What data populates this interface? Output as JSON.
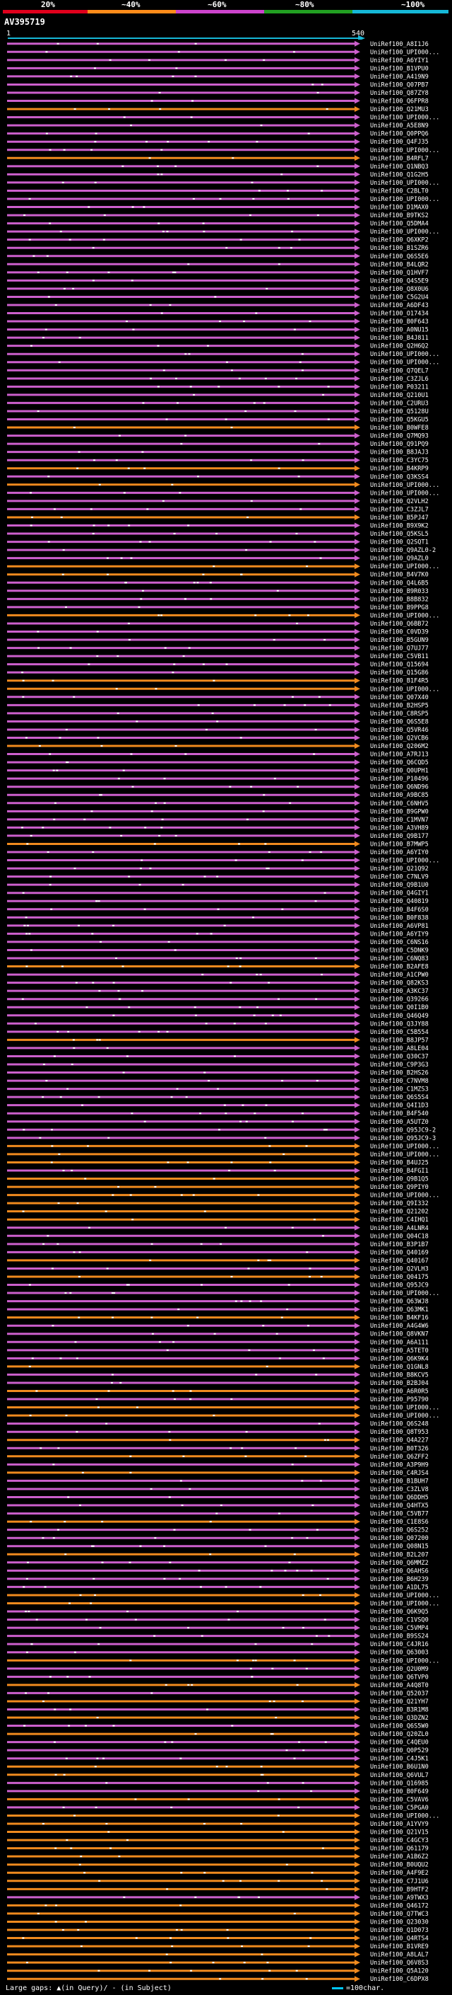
{
  "header": {
    "percent_labels": [
      "20%",
      "~40%",
      "~60%",
      "~80%",
      "~100%"
    ],
    "segment_colors": [
      "#e0001c",
      "#ff8c1a",
      "#cc44cc",
      "#22a022",
      "#16b8d8"
    ],
    "query_id": "AV395719",
    "ruler_start": "1",
    "ruler_end": "540"
  },
  "colors": {
    "background": "#000000",
    "purple_hit": "#cc5fcc",
    "orange_hit": "#f08a1e",
    "query_line": "#16b8d8",
    "gap_mark": "#ffffff"
  },
  "chart_data": {
    "type": "alignment-map",
    "x_axis": {
      "start": 1,
      "end": 540
    },
    "hits": [
      {
        "label": "UniRef100_A8I1J6",
        "color": "purple"
      },
      {
        "label": "UniRef100_UPI000...",
        "color": "purple"
      },
      {
        "label": "UniRef100_A6YIY1",
        "color": "purple"
      },
      {
        "label": "UniRef100_B1VPU0",
        "color": "purple"
      },
      {
        "label": "UniRef100_A419N9",
        "color": "purple"
      },
      {
        "label": "UniRef100_Q07PB7",
        "color": "purple"
      },
      {
        "label": "UniRef100_Q87ZY8",
        "color": "purple"
      },
      {
        "label": "UniRef100_Q6FPR8",
        "color": "purple"
      },
      {
        "label": "UniRef100_Q21MU3",
        "color": "orange"
      },
      {
        "label": "UniRef100_UPI000...",
        "color": "purple"
      },
      {
        "label": "UniRef100_A5E8N9",
        "color": "purple"
      },
      {
        "label": "UniRef100_Q0PPQ6",
        "color": "purple"
      },
      {
        "label": "UniRef100_Q4FJ35",
        "color": "purple"
      },
      {
        "label": "UniRef100_UPI000...",
        "color": "purple"
      },
      {
        "label": "UniRef100_B4RFL7",
        "color": "orange"
      },
      {
        "label": "UniRef100_Q1NBQ3",
        "color": "purple"
      },
      {
        "label": "UniRef100_Q1G2H5",
        "color": "purple"
      },
      {
        "label": "UniRef100_UPI000...",
        "color": "purple"
      },
      {
        "label": "UniRef100_C2BLT0",
        "color": "purple"
      },
      {
        "label": "UniRef100_UPI000...",
        "color": "purple"
      },
      {
        "label": "UniRef100_D1MAX0",
        "color": "purple"
      },
      {
        "label": "UniRef100_B9TKS2",
        "color": "purple"
      },
      {
        "label": "UniRef100_Q5DMA4",
        "color": "purple"
      },
      {
        "label": "UniRef100_UPI000...",
        "color": "purple"
      },
      {
        "label": "UniRef100_Q6XKP2",
        "color": "purple"
      },
      {
        "label": "UniRef100_B1SZR6",
        "color": "purple"
      },
      {
        "label": "UniRef100_Q6S5E6",
        "color": "purple"
      },
      {
        "label": "UniRef100_B4LQR2",
        "color": "purple"
      },
      {
        "label": "UniRef100_Q1HVF7",
        "color": "purple"
      },
      {
        "label": "UniRef100_Q4S5E9",
        "color": "purple"
      },
      {
        "label": "UniRef100_Q8X0U6",
        "color": "purple"
      },
      {
        "label": "UniRef100_C5G2U4",
        "color": "purple"
      },
      {
        "label": "UniRef100_A6DF43",
        "color": "purple"
      },
      {
        "label": "UniRef100_O17434",
        "color": "purple"
      },
      {
        "label": "UniRef100_B0F643",
        "color": "purple"
      },
      {
        "label": "UniRef100_A0NU15",
        "color": "purple"
      },
      {
        "label": "UniRef100_B4J811",
        "color": "purple"
      },
      {
        "label": "UniRef100_Q2H6Q2",
        "color": "purple"
      },
      {
        "label": "UniRef100_UPI000...",
        "color": "purple"
      },
      {
        "label": "UniRef100_UPI000...",
        "color": "purple"
      },
      {
        "label": "UniRef100_Q7QEL7",
        "color": "purple"
      },
      {
        "label": "UniRef100_C3ZJL6",
        "color": "purple"
      },
      {
        "label": "UniRef100_P03211",
        "color": "purple"
      },
      {
        "label": "UniRef100_Q210U1",
        "color": "purple"
      },
      {
        "label": "UniRef100_C2URU3",
        "color": "purple"
      },
      {
        "label": "UniRef100_Q5128U",
        "color": "purple"
      },
      {
        "label": "UniRef100_Q5KGU5",
        "color": "purple"
      },
      {
        "label": "UniRef100_B0WFE8",
        "color": "orange"
      },
      {
        "label": "UniRef100_Q7MQ93",
        "color": "purple"
      },
      {
        "label": "UniRef100_Q91PQ9",
        "color": "purple"
      },
      {
        "label": "UniRef100_B8JAJ3",
        "color": "purple"
      },
      {
        "label": "UniRef100_C3YC75",
        "color": "purple"
      },
      {
        "label": "UniRef100_B4KRP9",
        "color": "orange"
      },
      {
        "label": "UniRef100_Q3KSS4",
        "color": "purple"
      },
      {
        "label": "UniRef100_UPI000...",
        "color": "orange"
      },
      {
        "label": "UniRef100_UPI000...",
        "color": "purple"
      },
      {
        "label": "UniRef100_Q2VLH2",
        "color": "purple"
      },
      {
        "label": "UniRef100_C3ZJL7",
        "color": "purple"
      },
      {
        "label": "UniRef100_B5PJ47",
        "color": "orange"
      },
      {
        "label": "UniRef100_B9X9K2",
        "color": "purple"
      },
      {
        "label": "UniRef100_Q5KSL5",
        "color": "purple"
      },
      {
        "label": "UniRef100_Q2SQT1",
        "color": "purple"
      },
      {
        "label": "UniRef100_Q9AZL0-2",
        "color": "purple"
      },
      {
        "label": "UniRef100_Q9AZL0",
        "color": "purple"
      },
      {
        "label": "UniRef100_UPI000...",
        "color": "orange"
      },
      {
        "label": "UniRef100_B4V7K0",
        "color": "orange"
      },
      {
        "label": "UniRef100_Q4L6B5",
        "color": "purple"
      },
      {
        "label": "UniRef100_B9R033",
        "color": "purple"
      },
      {
        "label": "UniRef100_B8B832",
        "color": "purple"
      },
      {
        "label": "UniRef100_B9PPG8",
        "color": "purple"
      },
      {
        "label": "UniRef100_UPI000...",
        "color": "orange"
      },
      {
        "label": "UniRef100_Q6BB72",
        "color": "purple"
      },
      {
        "label": "UniRef100_C0VD39",
        "color": "purple"
      },
      {
        "label": "UniRef100_B5GUN9",
        "color": "purple"
      },
      {
        "label": "UniRef100_Q7UJ77",
        "color": "purple"
      },
      {
        "label": "UniRef100_C5VB11",
        "color": "purple"
      },
      {
        "label": "UniRef100_Q15694",
        "color": "purple"
      },
      {
        "label": "UniRef100_Q15G86",
        "color": "purple"
      },
      {
        "label": "UniRef100_B1F4R5",
        "color": "orange"
      },
      {
        "label": "UniRef100_UPI000...",
        "color": "orange"
      },
      {
        "label": "UniRef100_Q07X40",
        "color": "purple"
      },
      {
        "label": "UniRef100_B2HSP5",
        "color": "purple"
      },
      {
        "label": "UniRef100_C8RSP5",
        "color": "purple"
      },
      {
        "label": "UniRef100_Q6S5E8",
        "color": "purple"
      },
      {
        "label": "UniRef100_Q5VR46",
        "color": "purple"
      },
      {
        "label": "UniRef100_Q2VCB6",
        "color": "purple"
      },
      {
        "label": "UniRef100_Q206M2",
        "color": "orange"
      },
      {
        "label": "UniRef100_A7RJ13",
        "color": "purple"
      },
      {
        "label": "UniRef100_Q6CQD5",
        "color": "purple"
      },
      {
        "label": "UniRef100_Q0UPH1",
        "color": "purple"
      },
      {
        "label": "UniRef100_P10496",
        "color": "purple"
      },
      {
        "label": "UniRef100_Q6ND96",
        "color": "purple"
      },
      {
        "label": "UniRef100_A9BC85",
        "color": "purple"
      },
      {
        "label": "UniRef100_C6NHV5",
        "color": "purple"
      },
      {
        "label": "UniRef100_B9GPW0",
        "color": "purple"
      },
      {
        "label": "UniRef100_C1MVN7",
        "color": "purple"
      },
      {
        "label": "UniRef100_A3VH89",
        "color": "purple"
      },
      {
        "label": "UniRef100_Q9B177",
        "color": "purple"
      },
      {
        "label": "UniRef100_B7MWP5",
        "color": "orange"
      },
      {
        "label": "UniRef100_A6YIY0",
        "color": "purple"
      },
      {
        "label": "UniRef100_UPI000...",
        "color": "purple"
      },
      {
        "label": "UniRef100_Q21Q92",
        "color": "purple"
      },
      {
        "label": "UniRef100_C7NLV9",
        "color": "purple"
      },
      {
        "label": "UniRef100_Q9B1U0",
        "color": "purple"
      },
      {
        "label": "UniRef100_Q4GIY1",
        "color": "purple"
      },
      {
        "label": "UniRef100_Q40819",
        "color": "purple"
      },
      {
        "label": "UniRef100_B4F6S0",
        "color": "purple"
      },
      {
        "label": "UniRef100_B0F838",
        "color": "purple"
      },
      {
        "label": "UniRef100_A6VP81",
        "color": "purple"
      },
      {
        "label": "UniRef100_A6YIY9",
        "color": "purple"
      },
      {
        "label": "UniRef100_C6NS16",
        "color": "purple"
      },
      {
        "label": "UniRef100_C5DNK9",
        "color": "purple"
      },
      {
        "label": "UniRef100_C6NQ83",
        "color": "purple"
      },
      {
        "label": "UniRef100_B2AFE8",
        "color": "orange"
      },
      {
        "label": "UniRef100_A1CPW0",
        "color": "purple"
      },
      {
        "label": "UniRef100_Q82KS3",
        "color": "purple"
      },
      {
        "label": "UniRef100_A3KC37",
        "color": "purple"
      },
      {
        "label": "UniRef100_Q39266",
        "color": "purple"
      },
      {
        "label": "UniRef100_Q0I1B0",
        "color": "purple"
      },
      {
        "label": "UniRef100_Q46Q49",
        "color": "purple"
      },
      {
        "label": "UniRef100_Q3JY88",
        "color": "purple"
      },
      {
        "label": "UniRef100_C5B554",
        "color": "purple"
      },
      {
        "label": "UniRef100_B8JP57",
        "color": "orange"
      },
      {
        "label": "UniRef100_A8LE04",
        "color": "purple"
      },
      {
        "label": "UniRef100_Q30C37",
        "color": "purple"
      },
      {
        "label": "UniRef100_C9P3G3",
        "color": "purple"
      },
      {
        "label": "UniRef100_B2HS26",
        "color": "purple"
      },
      {
        "label": "UniRef100_C7NVM8",
        "color": "purple"
      },
      {
        "label": "UniRef100_C1MZS3",
        "color": "purple"
      },
      {
        "label": "UniRef100_Q6S5S4",
        "color": "purple"
      },
      {
        "label": "UniRef100_Q4I1D3",
        "color": "purple"
      },
      {
        "label": "UniRef100_B4F540",
        "color": "purple"
      },
      {
        "label": "UniRef100_A5UTZ0",
        "color": "purple"
      },
      {
        "label": "UniRef100_Q95JC9-2",
        "color": "purple"
      },
      {
        "label": "UniRef100_Q95JC9-3",
        "color": "purple"
      },
      {
        "label": "UniRef100_UPI000...",
        "color": "orange"
      },
      {
        "label": "UniRef100_UPI000...",
        "color": "orange"
      },
      {
        "label": "UniRef100_B4UJ25",
        "color": "orange"
      },
      {
        "label": "UniRef100_B4FGI1",
        "color": "purple"
      },
      {
        "label": "UniRef100_Q9B1Q5",
        "color": "orange"
      },
      {
        "label": "UniRef100_Q9PIY0",
        "color": "orange"
      },
      {
        "label": "UniRef100_UPI000...",
        "color": "orange"
      },
      {
        "label": "UniRef100_Q9I332",
        "color": "orange"
      },
      {
        "label": "UniRef100_Q21202",
        "color": "orange"
      },
      {
        "label": "UniRef100_C4IHQ1",
        "color": "orange"
      },
      {
        "label": "UniRef100_A4LNR4",
        "color": "purple"
      },
      {
        "label": "UniRef100_Q04C18",
        "color": "purple"
      },
      {
        "label": "UniRef100_B3P1B7",
        "color": "purple"
      },
      {
        "label": "UniRef100_Q40169",
        "color": "purple"
      },
      {
        "label": "UniRef100_Q40167",
        "color": "orange"
      },
      {
        "label": "UniRef100_Q2VLH3",
        "color": "purple"
      },
      {
        "label": "UniRef100_Q04175",
        "color": "orange"
      },
      {
        "label": "UniRef100_Q95JC9",
        "color": "purple"
      },
      {
        "label": "UniRef100_UPI000...",
        "color": "purple"
      },
      {
        "label": "UniRef100_Q63WJ8",
        "color": "purple"
      },
      {
        "label": "UniRef100_Q63MK1",
        "color": "purple"
      },
      {
        "label": "UniRef100_B4KF16",
        "color": "orange"
      },
      {
        "label": "UniRef100_A4G4W6",
        "color": "purple"
      },
      {
        "label": "UniRef100_Q8VKN7",
        "color": "purple"
      },
      {
        "label": "UniRef100_A6A111",
        "color": "purple"
      },
      {
        "label": "UniRef100_A5TET0",
        "color": "purple"
      },
      {
        "label": "UniRef100_Q6K9K4",
        "color": "purple"
      },
      {
        "label": "UniRef100_Q1GNL8",
        "color": "orange"
      },
      {
        "label": "UniRef100_B8KCV5",
        "color": "purple"
      },
      {
        "label": "UniRef100_B2BJ04",
        "color": "purple"
      },
      {
        "label": "UniRef100_A6R0R5",
        "color": "orange"
      },
      {
        "label": "UniRef100_P95790",
        "color": "purple"
      },
      {
        "label": "UniRef100_UPI000...",
        "color": "orange"
      },
      {
        "label": "UniRef100_UPI000...",
        "color": "orange"
      },
      {
        "label": "UniRef100_Q6S248",
        "color": "purple"
      },
      {
        "label": "UniRef100_Q8T953",
        "color": "purple"
      },
      {
        "label": "UniRef100_Q4A227",
        "color": "orange"
      },
      {
        "label": "UniRef100_B0T326",
        "color": "purple"
      },
      {
        "label": "UniRef100_Q6ZFF2",
        "color": "orange"
      },
      {
        "label": "UniRef100_A3P9H9",
        "color": "purple"
      },
      {
        "label": "UniRef100_C4RJS4",
        "color": "orange"
      },
      {
        "label": "UniRef100_B1BUH7",
        "color": "purple"
      },
      {
        "label": "UniRef100_C3ZLV8",
        "color": "purple"
      },
      {
        "label": "UniRef100_Q6DDH5",
        "color": "purple"
      },
      {
        "label": "UniRef100_Q4HTX5",
        "color": "purple"
      },
      {
        "label": "UniRef100_C5VB77",
        "color": "purple"
      },
      {
        "label": "UniRef100_C1E8S6",
        "color": "orange"
      },
      {
        "label": "UniRef100_Q6S252",
        "color": "purple"
      },
      {
        "label": "UniRef100_Q07200",
        "color": "purple"
      },
      {
        "label": "UniRef100_Q08N15",
        "color": "purple"
      },
      {
        "label": "UniRef100_B2L207",
        "color": "orange"
      },
      {
        "label": "UniRef100_Q6MMZ2",
        "color": "purple"
      },
      {
        "label": "UniRef100_Q6AHS6",
        "color": "purple"
      },
      {
        "label": "UniRef100_B6H239",
        "color": "purple"
      },
      {
        "label": "UniRef100_A1DL75",
        "color": "purple"
      },
      {
        "label": "UniRef100_UPI000...",
        "color": "orange"
      },
      {
        "label": "UniRef100_UPI000...",
        "color": "orange"
      },
      {
        "label": "UniRef100_Q6K9Q5",
        "color": "purple"
      },
      {
        "label": "UniRef100_C1VSQ0",
        "color": "purple"
      },
      {
        "label": "UniRef100_C5VMP4",
        "color": "purple"
      },
      {
        "label": "UniRef100_B9SS24",
        "color": "purple"
      },
      {
        "label": "UniRef100_C4JR16",
        "color": "purple"
      },
      {
        "label": "UniRef100_Q63003",
        "color": "purple"
      },
      {
        "label": "UniRef100_UPI000...",
        "color": "orange"
      },
      {
        "label": "UniRef100_Q2U0M9",
        "color": "purple"
      },
      {
        "label": "UniRef100_Q6TVP0",
        "color": "purple"
      },
      {
        "label": "UniRef100_A4Q8T0",
        "color": "orange"
      },
      {
        "label": "UniRef100_Q52037",
        "color": "purple"
      },
      {
        "label": "UniRef100_Q21YH7",
        "color": "orange"
      },
      {
        "label": "UniRef100_B3R1M8",
        "color": "purple"
      },
      {
        "label": "UniRef100_Q3DZN2",
        "color": "orange"
      },
      {
        "label": "UniRef100_Q6S5W0",
        "color": "purple"
      },
      {
        "label": "UniRef100_Q20ZL0",
        "color": "orange"
      },
      {
        "label": "UniRef100_C4QEU0",
        "color": "purple"
      },
      {
        "label": "UniRef100_Q0P529",
        "color": "purple"
      },
      {
        "label": "UniRef100_C4J5K1",
        "color": "purple"
      },
      {
        "label": "UniRef100_B6U1N0",
        "color": "orange"
      },
      {
        "label": "UniRef100_Q6VUL7",
        "color": "orange"
      },
      {
        "label": "UniRef100_Q16985",
        "color": "purple"
      },
      {
        "label": "UniRef100_B0F649",
        "color": "purple"
      },
      {
        "label": "UniRef100_C5VAV6",
        "color": "orange"
      },
      {
        "label": "UniRef100_C5PGA0",
        "color": "purple"
      },
      {
        "label": "UniRef100_UPI000...",
        "color": "orange"
      },
      {
        "label": "UniRef100_A1YVY9",
        "color": "orange"
      },
      {
        "label": "UniRef100_Q21V15",
        "color": "orange"
      },
      {
        "label": "UniRef100_C4GCY3",
        "color": "orange"
      },
      {
        "label": "UniRef100_Q61179",
        "color": "orange"
      },
      {
        "label": "UniRef100_A1B6Z2",
        "color": "orange"
      },
      {
        "label": "UniRef100_B0UQU2",
        "color": "orange"
      },
      {
        "label": "UniRef100_A4F9E2",
        "color": "orange"
      },
      {
        "label": "UniRef100_C7J1U6",
        "color": "orange"
      },
      {
        "label": "UniRef100_B9HTF2",
        "color": "orange"
      },
      {
        "label": "UniRef100_A9TWX3",
        "color": "purple"
      },
      {
        "label": "UniRef100_Q46172",
        "color": "orange"
      },
      {
        "label": "UniRef100_Q7TWC3",
        "color": "orange"
      },
      {
        "label": "UniRef100_Q23030",
        "color": "orange"
      },
      {
        "label": "UniRef100_Q1D073",
        "color": "orange"
      },
      {
        "label": "UniRef100_Q4RTS4",
        "color": "orange"
      },
      {
        "label": "UniRef100_B1VRE9",
        "color": "orange"
      },
      {
        "label": "UniRef100_A8LAL7",
        "color": "orange"
      },
      {
        "label": "UniRef100_Q6V8S3",
        "color": "orange"
      },
      {
        "label": "UniRef100_Q5A120",
        "color": "orange"
      },
      {
        "label": "UniRef100_C6DPX8",
        "color": "orange"
      }
    ]
  },
  "footer": {
    "gap_legend": "Large gaps: ▲(in Query)/ - (in Subject)",
    "scale_text": "=100char."
  }
}
